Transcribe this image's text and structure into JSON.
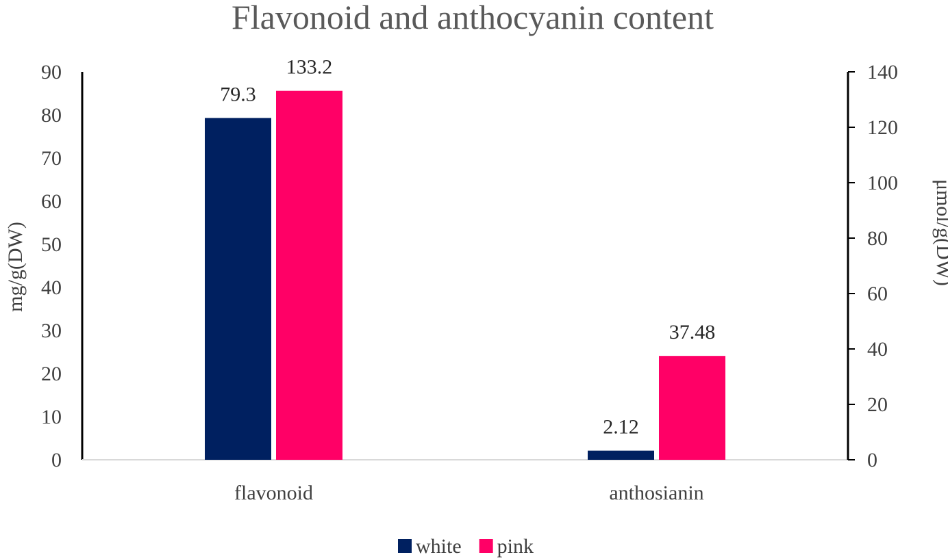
{
  "chart_data": {
    "type": "bar",
    "title": "Flavonoid and anthocyanin content",
    "categories": [
      "flavonoid",
      "anthosianin"
    ],
    "series": [
      {
        "name": "white",
        "color": "#002060",
        "values": [
          79.3,
          2.12
        ],
        "labels": [
          "79.3",
          "2.12"
        ]
      },
      {
        "name": "pink",
        "color": "#FF0066",
        "values": [
          85.6,
          24.1
        ],
        "labels": [
          "133.2",
          "37.48"
        ]
      }
    ],
    "ylabel": "mg/g(DW)",
    "y2label": "μmol/g(DW)",
    "ylim": [
      0,
      90
    ],
    "yticks": [
      0,
      10,
      20,
      30,
      40,
      50,
      60,
      70,
      80,
      90
    ],
    "y2lim": [
      0,
      140
    ],
    "y2ticks": [
      0,
      20,
      40,
      60,
      80,
      100,
      120,
      140
    ],
    "grid": false,
    "legend": "bottom-center"
  }
}
